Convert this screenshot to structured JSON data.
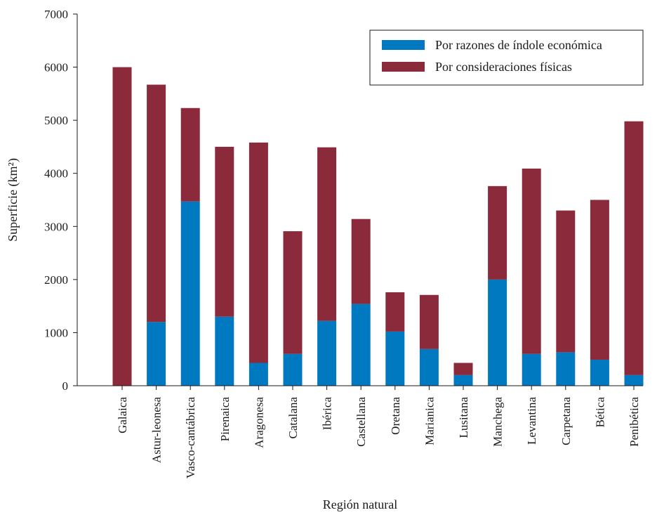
{
  "chart_data": {
    "type": "bar",
    "stacked": true,
    "categories": [
      "Galaica",
      "Astur-leonesa",
      "Vasco-cantábrica",
      "Pirenaica",
      "Aragonesa",
      "Catalana",
      "Ibérica",
      "Castellana",
      "Oretana",
      "Marianica",
      "Lusitana",
      "Manchega",
      "Levantina",
      "Carpetana",
      "Bética",
      "Penibética"
    ],
    "series": [
      {
        "name": "Por razones de índole económica",
        "color": "#0079c1",
        "values": [
          0,
          1200,
          3470,
          1300,
          430,
          600,
          1220,
          1540,
          1020,
          690,
          200,
          2000,
          600,
          630,
          490,
          200
        ]
      },
      {
        "name": "Por consideraciones físicas",
        "color": "#8a2a3b",
        "values": [
          6000,
          4470,
          1760,
          3200,
          4150,
          2310,
          3270,
          1600,
          740,
          1020,
          230,
          1760,
          3490,
          2670,
          3010,
          4780
        ]
      }
    ],
    "xlabel": "Región natural",
    "ylabel": "Superficie (km²)",
    "ylim": [
      0,
      7000
    ],
    "yticks": [
      "0",
      "1000",
      "2000",
      "3000",
      "4000",
      "5000",
      "6000",
      "7000"
    ],
    "grid": false,
    "legend_position": "top-right"
  }
}
